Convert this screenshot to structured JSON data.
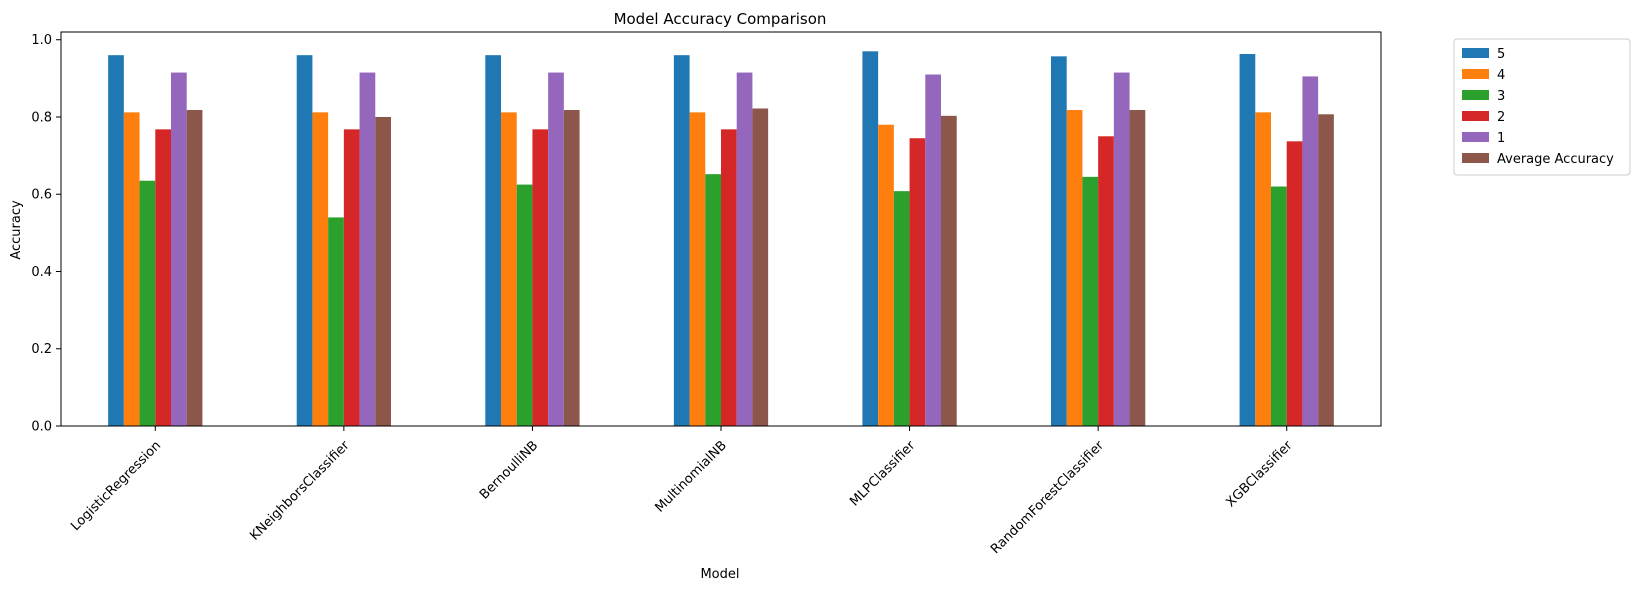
{
  "chart_data": {
    "type": "bar",
    "title": "Model Accuracy Comparison",
    "xlabel": "Model",
    "ylabel": "Accuracy",
    "ylim": [
      0,
      1.0
    ],
    "yticks": [
      "0.0",
      "0.2",
      "0.4",
      "0.6",
      "0.8",
      "1.0"
    ],
    "ytick_values": [
      0,
      0.2,
      0.4,
      0.6,
      0.8,
      1.0
    ],
    "grid": false,
    "legend_position": "outside-top-right",
    "categories": [
      "LogisticRegression",
      "KNeighborsClassifier",
      "BernoulliNB",
      "MultinomialNB",
      "MLPClassifier",
      "RandomForestClassifier",
      "XGBClassifier"
    ],
    "series": [
      {
        "name": "5",
        "color": "#1f77b4",
        "values": [
          0.96,
          0.96,
          0.96,
          0.96,
          0.97,
          0.957,
          0.963
        ]
      },
      {
        "name": "4",
        "color": "#ff7f0e",
        "values": [
          0.812,
          0.812,
          0.812,
          0.812,
          0.78,
          0.818,
          0.812
        ]
      },
      {
        "name": "3",
        "color": "#2ca02c",
        "values": [
          0.635,
          0.54,
          0.625,
          0.652,
          0.608,
          0.645,
          0.62
        ]
      },
      {
        "name": "2",
        "color": "#d62728",
        "values": [
          0.768,
          0.768,
          0.768,
          0.768,
          0.745,
          0.75,
          0.737
        ]
      },
      {
        "name": "1",
        "color": "#9467bd",
        "values": [
          0.915,
          0.915,
          0.915,
          0.915,
          0.91,
          0.915,
          0.905
        ]
      },
      {
        "name": "Average Accuracy",
        "color": "#8c564b",
        "values": [
          0.818,
          0.8,
          0.818,
          0.822,
          0.803,
          0.818,
          0.807
        ]
      }
    ]
  }
}
